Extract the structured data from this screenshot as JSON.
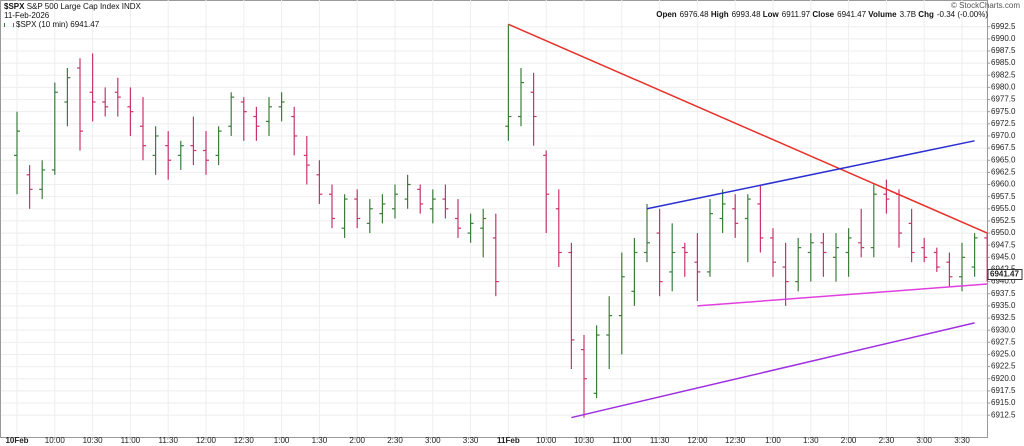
{
  "chart_data": {
    "type": "ohlc",
    "symbol": "$SPX",
    "name": "S&P 500 Large Cap Index",
    "exchange": "INDX",
    "date": "11-Feb-2026",
    "legend_label": "$SPX (10 min) 6941.47",
    "copyright": "© StockCharts.com",
    "stats": [
      {
        "label": "Open",
        "value": "6976.48"
      },
      {
        "label": "High",
        "value": "6993.48"
      },
      {
        "label": "Low",
        "value": "6911.97"
      },
      {
        "label": "Close",
        "value": "6941.47"
      },
      {
        "label": "Volume",
        "value": "3.7B"
      },
      {
        "label": "Chg",
        "value": "-0.34 (-0.00%)"
      }
    ],
    "categories": [
      "10Feb",
      null,
      null,
      "10:00",
      null,
      null,
      "10:30",
      null,
      null,
      "11:00",
      null,
      null,
      "11:30",
      null,
      null,
      "12:00",
      null,
      null,
      "12:30",
      null,
      null,
      "1:00",
      null,
      null,
      "1:30",
      null,
      null,
      "2:00",
      null,
      null,
      "2:30",
      null,
      null,
      "3:00",
      null,
      null,
      "3:30",
      null,
      null,
      "11Feb",
      null,
      null,
      "10:00",
      null,
      null,
      "10:30",
      null,
      null,
      "11:00",
      null,
      null,
      "11:30",
      null,
      null,
      "12:00",
      null,
      null,
      "12:30",
      null,
      null,
      "1:00",
      null,
      null,
      "1:30",
      null,
      null,
      "2:00",
      null,
      null,
      "2:30",
      null,
      null,
      "3:00",
      null,
      null,
      "3:30",
      null,
      null
    ],
    "open": [
      6966,
      6962,
      6959,
      6963,
      6977,
      6984,
      6979,
      6977,
      6979,
      6976,
      6972,
      6966,
      6968,
      6966,
      6968,
      6967,
      6966,
      6972,
      6977,
      6974,
      6973,
      6976,
      6974,
      6966,
      6962,
      6958,
      6951,
      6957,
      6952,
      6954,
      6955,
      6957,
      6959,
      6955,
      6957,
      6953,
      6950,
      6951,
      6949,
      6972,
      6974,
      6979,
      6966,
      6955,
      6946,
      6926,
      6917,
      6929,
      6933,
      6938,
      6946,
      6950,
      6942,
      6947,
      6944,
      6942,
      6953,
      6955,
      6953,
      6956,
      6949,
      6943,
      6940,
      6946,
      6948,
      6945,
      6946,
      6948,
      6947,
      6958,
      6958,
      6952,
      6947,
      6946,
      6944,
      6941,
      6943,
      6949
    ],
    "high": [
      6975,
      6964,
      6965,
      6981,
      6984,
      6986,
      6987,
      6980,
      6982,
      6980,
      6978,
      6972,
      6971,
      6969,
      6974,
      6971,
      6972,
      6979,
      6978,
      6976,
      6978,
      6979,
      6976,
      6970,
      6965,
      6960,
      6958,
      6959,
      6957,
      6958,
      6960,
      6962,
      6960,
      6959,
      6960,
      6957,
      6954,
      6955,
      6954,
      6993,
      6984,
      6983,
      6967,
      6959,
      6948,
      6929,
      6931,
      6937,
      6946,
      6949,
      6956,
      6955,
      6952,
      6948,
      6950,
      6957,
      6959,
      6958,
      6958,
      6960,
      6951,
      6948,
      6949,
      6950,
      6950,
      6950,
      6951,
      6955,
      6960,
      6961,
      6959,
      6955,
      6949,
      6947,
      6946,
      6948,
      6950,
      6950
    ],
    "low": [
      6958,
      6955,
      6957,
      6962,
      6972,
      6967,
      6973,
      6974,
      6974,
      6970,
      6965,
      6962,
      6961,
      6963,
      6964,
      6962,
      6964,
      6970,
      6969,
      6969,
      6970,
      6973,
      6966,
      6960,
      6956,
      6951,
      6949,
      6951,
      6950,
      6952,
      6953,
      6955,
      6954,
      6952,
      6953,
      6949,
      6948,
      6945,
      6937,
      6969,
      6972,
      6968,
      6950,
      6943,
      6922,
      6912,
      6916,
      6922,
      6925,
      6935,
      6944,
      6937,
      6938,
      6941,
      6936,
      6941,
      6950,
      6949,
      6944,
      6946,
      6941,
      6935,
      6938,
      6940,
      6941,
      6940,
      6941,
      6945,
      6945,
      6954,
      6947,
      6944,
      6944,
      6942,
      6939,
      6938,
      6941,
      6940
    ],
    "close": [
      6971,
      6959,
      6963,
      6979,
      6982,
      6971,
      6977,
      6976,
      6978,
      6975,
      6968,
      6970,
      6965,
      6968,
      6967,
      6965,
      6971,
      6978,
      6975,
      6972,
      6976,
      6977,
      6970,
      6964,
      6958,
      6953,
      6957,
      6953,
      6955,
      6956,
      6958,
      6960,
      6956,
      6957,
      6955,
      6951,
      6952,
      6953,
      6940,
      6974,
      6981,
      6974,
      6958,
      6946,
      6928,
      6920,
      6929,
      6933,
      6941,
      6946,
      6948,
      6940,
      6946,
      6946,
      6942,
      6954,
      6956,
      6952,
      6957,
      6949,
      6944,
      6940,
      6947,
      6948,
      6946,
      6947,
      6949,
      6947,
      6958,
      6957,
      6950,
      6946,
      6945,
      6943,
      6941,
      6945,
      6949,
      6941.47
    ],
    "up_color": "#3c7d3c",
    "down_color": "#c8336e",
    "last_price": 6941.47,
    "trendlines": [
      {
        "x1": 39,
        "y1": 6993,
        "x2": 77,
        "y2": 6950,
        "color": "#e8302a"
      },
      {
        "x1": 50,
        "y1": 6955,
        "x2": 76,
        "y2": 6969,
        "color": "#2a2fd0"
      },
      {
        "x1": 54,
        "y1": 6935,
        "x2": 77,
        "y2": 6939.5,
        "color": "#e040e0"
      },
      {
        "x1": 44,
        "y1": 6912,
        "x2": 76,
        "y2": 6931.5,
        "color": "#a030e0"
      }
    ],
    "ylim": [
      6908,
      6998
    ],
    "yticks": [
      6912.5,
      {
        "value": 6915,
        "label": "6915.0"
      },
      6917.5,
      {
        "value": 6920,
        "label": "6920.0"
      },
      6922.5,
      {
        "value": 6925,
        "label": "6925.0"
      },
      6927.5,
      {
        "value": 6930,
        "label": "6930.0"
      },
      6932.5,
      {
        "value": 6935,
        "label": "6935.0"
      },
      6937.5,
      {
        "value": 6940,
        "label": "6940.0"
      },
      6942.5,
      {
        "value": 6945,
        "label": "6945.0"
      },
      6947.5,
      {
        "value": 6950,
        "label": "6950.0"
      },
      6952.5,
      {
        "value": 6955,
        "label": "6955.0"
      },
      6957.5,
      {
        "value": 6960,
        "label": "6960.0"
      },
      6962.5,
      {
        "value": 6965,
        "label": "6965.0"
      },
      6967.5,
      {
        "value": 6970,
        "label": "6970.0"
      },
      6972.5,
      {
        "value": 6975,
        "label": "6975.0"
      },
      6977.5,
      {
        "value": 6980,
        "label": "6980.0"
      },
      6982.5,
      {
        "value": 6985,
        "label": "6985.0"
      },
      6987.5,
      {
        "value": 6990,
        "label": "6990.0"
      },
      6992.5
    ],
    "grid": true
  }
}
